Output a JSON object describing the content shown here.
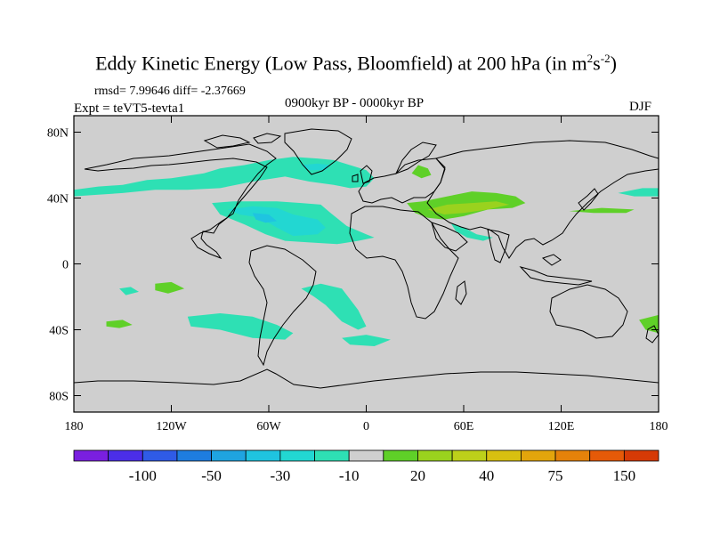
{
  "title": {
    "main": "Eddy Kinetic Energy (Low Pass, Bloomfield) at 200 hPa (in m",
    "sup1": "2",
    "mid": "s",
    "sup2": "-2",
    "close": ")"
  },
  "stats": {
    "rmsd": "rmsd= 7.99646 diff= -2.37669",
    "experiment": "Expt = teVT5-tevta1",
    "period": "0900kyr BP - 0000kyr BP",
    "season": "DJF"
  },
  "chart_data": {
    "type": "heatmap",
    "variable": "Eddy Kinetic Energy difference",
    "units": "m2 s-2",
    "xlim": [
      -180,
      180
    ],
    "ylim": [
      -90,
      90
    ],
    "x_ticks": [
      {
        "value": -180,
        "label": "180"
      },
      {
        "value": -120,
        "label": "120W"
      },
      {
        "value": -60,
        "label": "60W"
      },
      {
        "value": 0,
        "label": "0"
      },
      {
        "value": 60,
        "label": "60E"
      },
      {
        "value": 120,
        "label": "120E"
      },
      {
        "value": 180,
        "label": "180"
      }
    ],
    "y_ticks": [
      {
        "value": 80,
        "label": "80N"
      },
      {
        "value": 40,
        "label": "40N"
      },
      {
        "value": 0,
        "label": "0"
      },
      {
        "value": -40,
        "label": "40S"
      },
      {
        "value": -80,
        "label": "80S"
      }
    ],
    "colorbar": {
      "colors": [
        "#7a1fe0",
        "#4b2ee8",
        "#2f5be6",
        "#1e7de0",
        "#1fa4e0",
        "#1fc4e0",
        "#22d7d2",
        "#2ee0b4",
        "#cfcfcf",
        "#5fd028",
        "#9ad21e",
        "#bdd01a",
        "#d8c010",
        "#e3a50c",
        "#e5820a",
        "#e55a08",
        "#d63a06"
      ],
      "labels": [
        {
          "after_index": 1,
          "text": "-100"
        },
        {
          "after_index": 3,
          "text": "-50"
        },
        {
          "after_index": 5,
          "text": "-30"
        },
        {
          "after_index": 7,
          "text": "-10"
        },
        {
          "after_index": 9,
          "text": "20"
        },
        {
          "after_index": 11,
          "text": "40"
        },
        {
          "after_index": 13,
          "text": "75"
        },
        {
          "after_index": 15,
          "text": "150"
        }
      ]
    },
    "regions": [
      {
        "name": "north-atlantic-negative",
        "color": "#2ee0b4",
        "points": [
          [
            -180,
            45
          ],
          [
            -165,
            47
          ],
          [
            -150,
            48
          ],
          [
            -135,
            51
          ],
          [
            -120,
            52
          ],
          [
            -100,
            55
          ],
          [
            -90,
            58
          ],
          [
            -75,
            60
          ],
          [
            -60,
            63
          ],
          [
            -45,
            65
          ],
          [
            -30,
            64
          ],
          [
            -20,
            63
          ],
          [
            -10,
            60
          ],
          [
            0,
            57
          ],
          [
            5,
            52
          ],
          [
            0,
            47
          ],
          [
            -10,
            46
          ],
          [
            -20,
            48
          ],
          [
            -35,
            50
          ],
          [
            -50,
            53
          ],
          [
            -70,
            50
          ],
          [
            -90,
            46
          ],
          [
            -110,
            45
          ],
          [
            -130,
            45
          ],
          [
            -150,
            43
          ],
          [
            -165,
            42
          ],
          [
            -180,
            41
          ]
        ]
      },
      {
        "name": "north-atlantic-core",
        "color": "#22d7d2",
        "points": [
          [
            -40,
            60
          ],
          [
            -30,
            61
          ],
          [
            -22,
            60
          ],
          [
            -25,
            57
          ],
          [
            -35,
            57
          ]
        ]
      },
      {
        "name": "central-atlantic-negative",
        "color": "#2ee0b4",
        "points": [
          [
            -95,
            37
          ],
          [
            -82,
            38
          ],
          [
            -70,
            38
          ],
          [
            -55,
            38
          ],
          [
            -40,
            37
          ],
          [
            -28,
            36
          ],
          [
            -22,
            31
          ],
          [
            -12,
            23
          ],
          [
            0,
            18
          ],
          [
            5,
            16
          ],
          [
            -5,
            14
          ],
          [
            -18,
            12
          ],
          [
            -35,
            13
          ],
          [
            -50,
            14
          ],
          [
            -62,
            18
          ],
          [
            -75,
            24
          ],
          [
            -90,
            30
          ]
        ]
      },
      {
        "name": "central-atlantic-core",
        "color": "#22d7d2",
        "points": [
          [
            -85,
            33
          ],
          [
            -70,
            35
          ],
          [
            -55,
            34
          ],
          [
            -45,
            30
          ],
          [
            -30,
            27
          ],
          [
            -25,
            22
          ],
          [
            -30,
            18
          ],
          [
            -45,
            17
          ],
          [
            -55,
            22
          ],
          [
            -65,
            28
          ],
          [
            -78,
            30
          ]
        ]
      },
      {
        "name": "central-atlantic-deep",
        "color": "#1fc4e0",
        "points": [
          [
            -70,
            31
          ],
          [
            -60,
            30
          ],
          [
            -55,
            26
          ],
          [
            -62,
            25
          ],
          [
            -68,
            27
          ]
        ]
      },
      {
        "name": "eurasia-positive",
        "color": "#5fd028",
        "points": [
          [
            25,
            37
          ],
          [
            35,
            38
          ],
          [
            50,
            41
          ],
          [
            65,
            44
          ],
          [
            80,
            43
          ],
          [
            92,
            41
          ],
          [
            98,
            37
          ],
          [
            90,
            34
          ],
          [
            75,
            33
          ],
          [
            60,
            29
          ],
          [
            48,
            27
          ],
          [
            38,
            28
          ],
          [
            30,
            31
          ]
        ]
      },
      {
        "name": "eurasia-core",
        "color": "#9ad21e",
        "points": [
          [
            38,
            33
          ],
          [
            50,
            36
          ],
          [
            65,
            37
          ],
          [
            80,
            38
          ],
          [
            88,
            36
          ],
          [
            75,
            33
          ],
          [
            60,
            31
          ],
          [
            48,
            30
          ]
        ]
      },
      {
        "name": "scandinavia-positive",
        "color": "#5fd028",
        "points": [
          [
            32,
            60
          ],
          [
            38,
            58
          ],
          [
            40,
            54
          ],
          [
            34,
            52
          ],
          [
            28,
            55
          ]
        ]
      },
      {
        "name": "indian-negative",
        "color": "#2ee0b4",
        "points": [
          [
            52,
            25
          ],
          [
            60,
            22
          ],
          [
            68,
            18
          ],
          [
            78,
            16
          ],
          [
            72,
            14
          ],
          [
            62,
            16
          ],
          [
            55,
            20
          ]
        ]
      },
      {
        "name": "south-atlantic-negative",
        "color": "#2ee0b4",
        "points": [
          [
            -40,
            -15
          ],
          [
            -28,
            -12
          ],
          [
            -15,
            -15
          ],
          [
            -5,
            -28
          ],
          [
            0,
            -38
          ],
          [
            -5,
            -40
          ],
          [
            -15,
            -35
          ],
          [
            -25,
            -25
          ],
          [
            -32,
            -20
          ]
        ]
      },
      {
        "name": "southern-ocean-negative",
        "color": "#2ee0b4",
        "points": [
          [
            -110,
            -32
          ],
          [
            -90,
            -30
          ],
          [
            -70,
            -32
          ],
          [
            -55,
            -37
          ],
          [
            -45,
            -42
          ],
          [
            -50,
            -46
          ],
          [
            -70,
            -45
          ],
          [
            -90,
            -40
          ],
          [
            -108,
            -38
          ]
        ]
      },
      {
        "name": "south-pacific-negative",
        "color": "#2ee0b4",
        "points": [
          [
            -152,
            -15
          ],
          [
            -145,
            -14
          ],
          [
            -140,
            -17
          ],
          [
            -148,
            -19
          ]
        ]
      },
      {
        "name": "south-pacific-positive",
        "color": "#5fd028",
        "points": [
          [
            -130,
            -12
          ],
          [
            -120,
            -11
          ],
          [
            -112,
            -15
          ],
          [
            -122,
            -18
          ],
          [
            -130,
            -16
          ]
        ]
      },
      {
        "name": "south-pacific-positive-2",
        "color": "#5fd028",
        "points": [
          [
            -160,
            -35
          ],
          [
            -150,
            -34
          ],
          [
            -144,
            -37
          ],
          [
            -152,
            -39
          ],
          [
            -160,
            -38
          ]
        ]
      },
      {
        "name": "south-indian-positive",
        "color": "#5fd028",
        "points": [
          [
            168,
            -34
          ],
          [
            180,
            -31
          ],
          [
            180,
            -42
          ],
          [
            172,
            -40
          ]
        ]
      },
      {
        "name": "west-pacific-positive",
        "color": "#5fd028",
        "points": [
          [
            125,
            32
          ],
          [
            145,
            34
          ],
          [
            165,
            33
          ],
          [
            160,
            31
          ],
          [
            140,
            31
          ]
        ]
      },
      {
        "name": "north-pacific-negative",
        "color": "#2ee0b4",
        "points": [
          [
            155,
            43
          ],
          [
            170,
            46
          ],
          [
            180,
            46
          ],
          [
            180,
            41
          ],
          [
            165,
            41
          ]
        ]
      },
      {
        "name": "southern-ocean-negative-2",
        "color": "#2ee0b4",
        "points": [
          [
            -15,
            -45
          ],
          [
            0,
            -43
          ],
          [
            15,
            -46
          ],
          [
            5,
            -50
          ],
          [
            -10,
            -49
          ]
        ]
      }
    ]
  }
}
